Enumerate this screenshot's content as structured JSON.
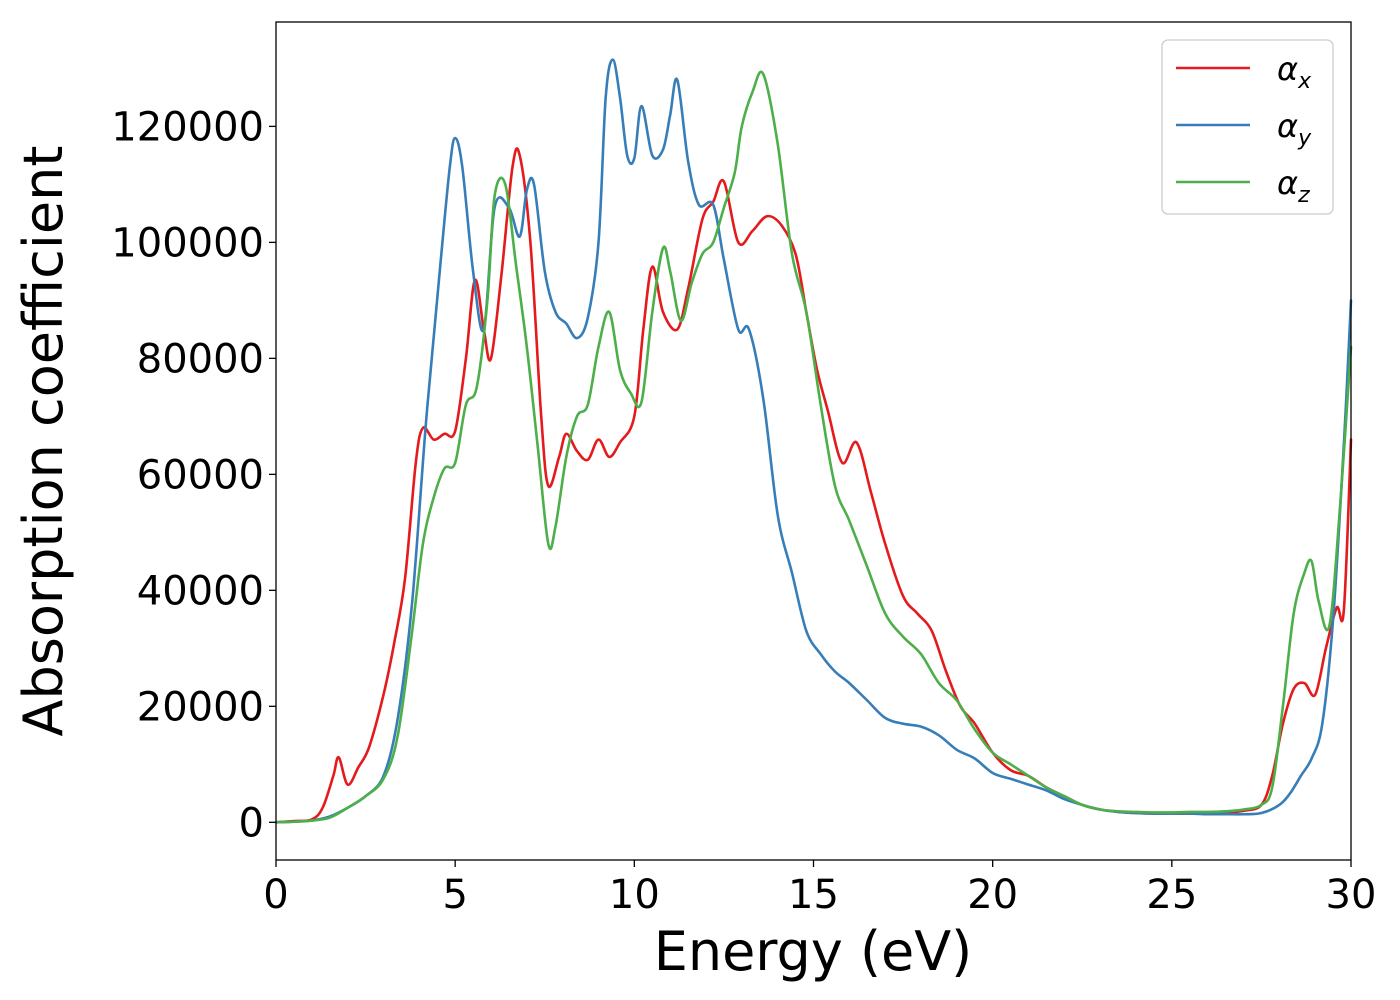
{
  "chart_data": {
    "type": "line",
    "title": "",
    "xlabel": "Energy (eV)",
    "ylabel": "Absorption coefficient",
    "xlim": [
      0,
      30
    ],
    "ylim": [
      -6500,
      138000
    ],
    "xticks": [
      0,
      5,
      10,
      15,
      20,
      25,
      30
    ],
    "yticks": [
      0,
      20000,
      40000,
      60000,
      80000,
      100000,
      120000
    ],
    "grid": false,
    "legend_position": "top-right",
    "series": [
      {
        "name": "αx",
        "symbol": "α",
        "subscript": "x",
        "color": "#e41a1c",
        "x": [
          0,
          0.5,
          1.0,
          1.3,
          1.6,
          1.75,
          2.0,
          2.3,
          2.6,
          3.0,
          3.3,
          3.6,
          3.9,
          4.1,
          4.4,
          4.7,
          5.0,
          5.3,
          5.55,
          5.8,
          6.0,
          6.3,
          6.6,
          6.8,
          7.1,
          7.4,
          7.6,
          7.9,
          8.1,
          8.4,
          8.7,
          9.0,
          9.3,
          9.6,
          10.0,
          10.25,
          10.5,
          10.8,
          11.2,
          11.5,
          11.9,
          12.2,
          12.5,
          12.9,
          13.3,
          13.7,
          14.1,
          14.5,
          14.8,
          15.1,
          15.4,
          15.8,
          16.2,
          16.6,
          17.0,
          17.5,
          17.9,
          18.3,
          18.7,
          19.1,
          19.5,
          20.0,
          20.5,
          21.0,
          21.5,
          22.0,
          22.5,
          23.0,
          23.5,
          24.0,
          24.5,
          25.0,
          25.5,
          26.0,
          26.5,
          27.0,
          27.5,
          27.8,
          28.1,
          28.4,
          28.7,
          29.0,
          29.3,
          29.6,
          29.8,
          30.0
        ],
        "y": [
          0,
          200,
          500,
          2500,
          8000,
          11200,
          6500,
          9500,
          13000,
          22000,
          31000,
          42000,
          62000,
          68000,
          66000,
          67000,
          67500,
          80000,
          93500,
          85000,
          80000,
          95000,
          113000,
          115000,
          100000,
          70000,
          58000,
          63000,
          67000,
          64000,
          62500,
          66000,
          63000,
          65500,
          70000,
          85000,
          95800,
          88000,
          85000,
          92000,
          104000,
          107000,
          110500,
          100000,
          102000,
          104500,
          103000,
          98000,
          88000,
          78000,
          71000,
          62000,
          65500,
          57000,
          48000,
          39000,
          36000,
          33000,
          26000,
          20000,
          17000,
          12000,
          9000,
          8000,
          6000,
          4500,
          3000,
          2200,
          1800,
          1600,
          1500,
          1500,
          1500,
          1600,
          1700,
          2000,
          3000,
          8000,
          17000,
          23000,
          24000,
          22000,
          30000,
          37000,
          36500,
          66000
        ]
      },
      {
        "name": "αy",
        "symbol": "α",
        "subscript": "y",
        "color": "#377eb8",
        "x": [
          0,
          0.5,
          1.0,
          1.5,
          2.0,
          2.5,
          3.0,
          3.4,
          3.8,
          4.2,
          4.6,
          4.85,
          5.0,
          5.2,
          5.5,
          5.8,
          6.1,
          6.5,
          6.8,
          7.0,
          7.2,
          7.5,
          7.8,
          8.1,
          8.4,
          8.7,
          9.0,
          9.2,
          9.4,
          9.6,
          9.8,
          10.0,
          10.2,
          10.5,
          10.8,
          11.0,
          11.2,
          11.5,
          11.8,
          12.2,
          12.5,
          12.9,
          13.2,
          13.6,
          14.0,
          14.4,
          14.8,
          15.2,
          15.6,
          16.0,
          16.5,
          17.0,
          17.5,
          18.0,
          18.5,
          19.0,
          19.5,
          20.0,
          20.5,
          21.0,
          21.5,
          22.0,
          22.5,
          23.0,
          23.5,
          24.0,
          24.5,
          25.0,
          25.5,
          26.0,
          26.5,
          27.0,
          27.5,
          28.0,
          28.3,
          28.6,
          28.9,
          29.2,
          29.5,
          29.8,
          30.0
        ],
        "y": [
          0,
          100,
          300,
          1000,
          2500,
          4500,
          8000,
          18000,
          38000,
          70000,
          97000,
          113000,
          118000,
          113000,
          95000,
          85000,
          106000,
          106000,
          101000,
          109000,
          110000,
          95000,
          88000,
          86000,
          83500,
          87000,
          100000,
          125000,
          131500,
          125000,
          115000,
          114500,
          123500,
          115000,
          116000,
          122000,
          128000,
          114000,
          106500,
          106500,
          97000,
          85000,
          85000,
          73000,
          53000,
          43000,
          33000,
          29000,
          26000,
          24000,
          21000,
          18000,
          17000,
          16500,
          15000,
          12500,
          11000,
          8500,
          7500,
          6500,
          5500,
          4000,
          3000,
          2200,
          1800,
          1600,
          1500,
          1500,
          1500,
          1400,
          1400,
          1400,
          1600,
          3000,
          5000,
          8000,
          11000,
          17000,
          35000,
          65000,
          90000
        ]
      },
      {
        "name": "αz",
        "symbol": "α",
        "subscript": "z",
        "color": "#4daf4a",
        "x": [
          0,
          0.5,
          1.0,
          1.5,
          2.0,
          2.5,
          3.0,
          3.4,
          3.8,
          4.1,
          4.4,
          4.7,
          5.0,
          5.3,
          5.6,
          5.9,
          6.1,
          6.4,
          6.7,
          7.0,
          7.3,
          7.6,
          7.8,
          8.1,
          8.4,
          8.7,
          9.0,
          9.3,
          9.6,
          9.9,
          10.2,
          10.5,
          10.8,
          11.0,
          11.3,
          11.6,
          11.9,
          12.2,
          12.5,
          12.8,
          13.0,
          13.3,
          13.6,
          14.0,
          14.4,
          14.8,
          15.2,
          15.6,
          16.0,
          16.5,
          17.0,
          17.5,
          18.0,
          18.5,
          19.0,
          19.5,
          20.0,
          20.5,
          21.0,
          21.5,
          22.0,
          22.5,
          23.0,
          23.5,
          24.0,
          24.5,
          25.0,
          25.5,
          26.0,
          26.5,
          27.0,
          27.5,
          27.8,
          28.1,
          28.4,
          28.7,
          28.9,
          29.1,
          29.4,
          29.7,
          30.0
        ],
        "y": [
          0,
          100,
          300,
          800,
          2500,
          4500,
          7500,
          15000,
          33000,
          48000,
          56000,
          61000,
          62000,
          72000,
          75000,
          90000,
          108000,
          110000,
          96000,
          82000,
          65000,
          48000,
          51000,
          63000,
          70000,
          72000,
          82000,
          88000,
          78000,
          74000,
          72500,
          88000,
          99000,
          95000,
          86500,
          93000,
          98000,
          100000,
          106000,
          112000,
          120000,
          126000,
          129000,
          117000,
          98000,
          88000,
          72000,
          58000,
          52000,
          44000,
          36000,
          32000,
          29000,
          24000,
          21000,
          16000,
          12000,
          10000,
          8000,
          6000,
          4500,
          3000,
          2200,
          1900,
          1800,
          1700,
          1700,
          1800,
          1800,
          1900,
          2200,
          3000,
          6000,
          20000,
          36000,
          43000,
          45000,
          38000,
          34000,
          55000,
          82000
        ]
      }
    ]
  }
}
